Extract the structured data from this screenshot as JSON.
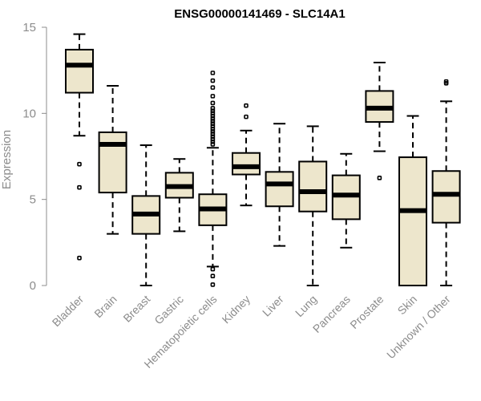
{
  "chart_data": {
    "type": "boxplot",
    "title": "ENSG00000141469 - SLC14A1",
    "ylabel": "Expression",
    "xlabel": "",
    "ylim": [
      0,
      15
    ],
    "yticks": [
      0,
      5,
      10,
      15
    ],
    "box_fill": "#ede6cc",
    "axis_color": "#8c8c8c",
    "categories": [
      "Bladder",
      "Brain",
      "Breast",
      "Gastric",
      "Hematopoietic cells",
      "Kidney",
      "Liver",
      "Lung",
      "Pancreas",
      "Prostate",
      "Skin",
      "Unknown / Other"
    ],
    "boxes": [
      {
        "label": "Bladder",
        "min": 8.7,
        "q1": 11.2,
        "median": 12.8,
        "q3": 13.7,
        "max": 14.6,
        "outliers": [
          7.05,
          5.7,
          1.6
        ]
      },
      {
        "label": "Brain",
        "min": 3.0,
        "q1": 5.4,
        "median": 8.2,
        "q3": 8.9,
        "max": 11.6,
        "outliers": []
      },
      {
        "label": "Breast",
        "min": 0.0,
        "q1": 3.0,
        "median": 4.15,
        "q3": 5.2,
        "max": 8.15,
        "outliers": []
      },
      {
        "label": "Gastric",
        "min": 3.15,
        "q1": 5.1,
        "median": 5.75,
        "q3": 6.55,
        "max": 7.35,
        "outliers": []
      },
      {
        "label": "Hematopoietic cells",
        "min": 1.1,
        "q1": 3.5,
        "median": 4.45,
        "q3": 5.3,
        "max": 8.0,
        "outliers": [
          8.2,
          8.35,
          8.5,
          8.65,
          8.8,
          8.95,
          9.1,
          9.25,
          9.4,
          9.55,
          9.7,
          9.85,
          10.0,
          10.15,
          10.3,
          10.6,
          11.0,
          11.5,
          11.9,
          12.35,
          0.95,
          0.55,
          0.05
        ]
      },
      {
        "label": "Kidney",
        "min": 4.65,
        "q1": 6.45,
        "median": 6.9,
        "q3": 7.7,
        "max": 9.0,
        "outliers": [
          9.8,
          10.45
        ]
      },
      {
        "label": "Liver",
        "min": 2.3,
        "q1": 4.6,
        "median": 5.9,
        "q3": 6.6,
        "max": 9.4,
        "outliers": []
      },
      {
        "label": "Lung",
        "min": 0.0,
        "q1": 4.3,
        "median": 5.45,
        "q3": 7.2,
        "max": 9.25,
        "outliers": []
      },
      {
        "label": "Pancreas",
        "min": 2.2,
        "q1": 3.85,
        "median": 5.25,
        "q3": 6.4,
        "max": 7.65,
        "outliers": []
      },
      {
        "label": "Prostate",
        "min": 7.8,
        "q1": 9.5,
        "median": 10.3,
        "q3": 11.3,
        "max": 12.95,
        "outliers": [
          6.25
        ]
      },
      {
        "label": "Skin",
        "min": 0.0,
        "q1": 0.0,
        "median": 4.35,
        "q3": 7.45,
        "max": 9.85,
        "outliers": []
      },
      {
        "label": "Unknown / Other",
        "min": 0.0,
        "q1": 3.65,
        "median": 5.3,
        "q3": 6.65,
        "max": 10.7,
        "outliers": [
          11.75,
          11.85
        ]
      }
    ]
  }
}
